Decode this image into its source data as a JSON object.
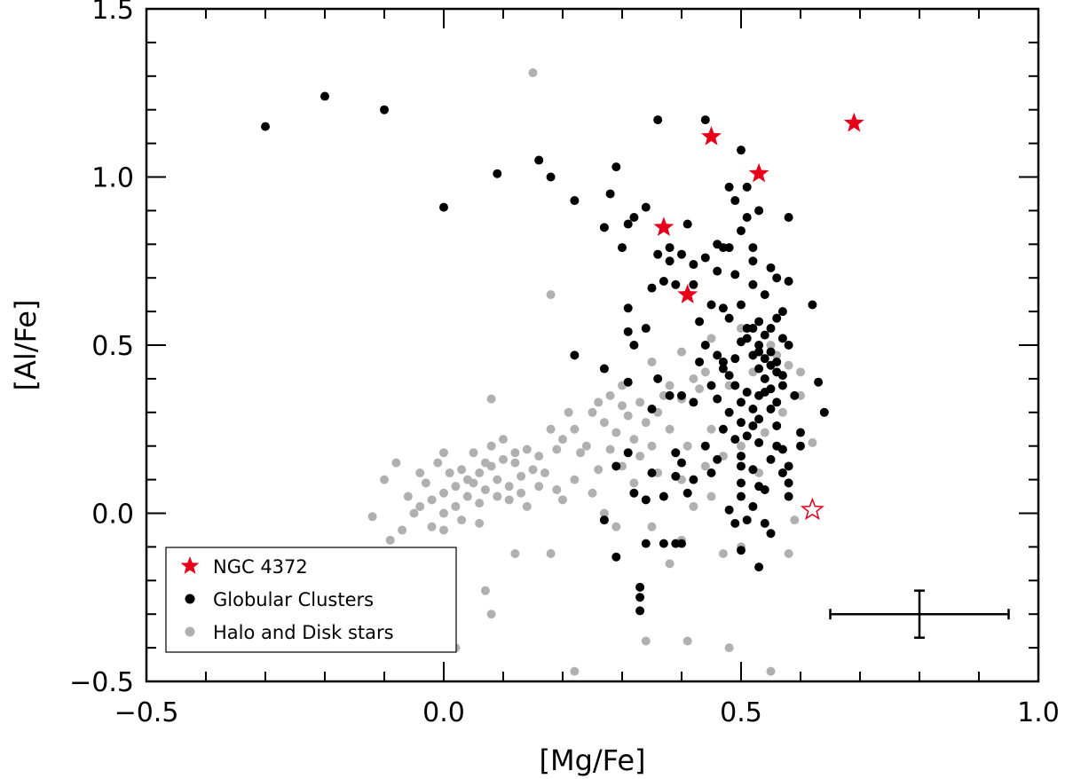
{
  "chart_data": {
    "type": "scatter",
    "title": "",
    "xlabel": "[Mg/Fe]",
    "ylabel": "[Al/Fe]",
    "xlim": [
      -0.5,
      1.0
    ],
    "ylim": [
      -0.5,
      1.5
    ],
    "x_ticks": [
      -0.5,
      0.0,
      0.5,
      1.0
    ],
    "x_tick_labels": [
      "−0.5",
      "0.0",
      "0.5",
      "1.0"
    ],
    "y_ticks": [
      -0.5,
      0.0,
      0.5,
      1.0,
      1.5
    ],
    "y_tick_labels": [
      "−0.5",
      "0.0",
      "0.5",
      "1.0",
      "1.5"
    ],
    "grid": false,
    "legend_position": "bottom-left",
    "series": [
      {
        "name": "Halo and Disk stars",
        "marker": "circle",
        "color": "#b0b0b0",
        "points": [
          [
            0.15,
            1.31
          ],
          [
            0.18,
            0.65
          ],
          [
            0.3,
            0.38
          ],
          [
            0.35,
            0.45
          ],
          [
            0.4,
            0.48
          ],
          [
            0.45,
            0.52
          ],
          [
            0.5,
            0.55
          ],
          [
            0.55,
            0.5
          ],
          [
            0.6,
            0.42
          ],
          [
            0.38,
            0.38
          ],
          [
            0.42,
            0.4
          ],
          [
            0.47,
            0.45
          ],
          [
            0.33,
            0.33
          ],
          [
            0.36,
            0.3
          ],
          [
            0.28,
            0.35
          ],
          [
            0.25,
            0.3
          ],
          [
            0.22,
            0.25
          ],
          [
            0.2,
            0.22
          ],
          [
            0.18,
            0.25
          ],
          [
            0.27,
            0.27
          ],
          [
            0.31,
            0.29
          ],
          [
            0.24,
            0.2
          ],
          [
            0.21,
            0.3
          ],
          [
            0.26,
            0.33
          ],
          [
            0.3,
            0.32
          ],
          [
            0.34,
            0.27
          ],
          [
            0.37,
            0.35
          ],
          [
            0.4,
            0.34
          ],
          [
            0.43,
            0.37
          ],
          [
            0.44,
            0.42
          ],
          [
            0.48,
            0.38
          ],
          [
            0.52,
            0.42
          ],
          [
            0.56,
            0.47
          ],
          [
            0.58,
            0.44
          ],
          [
            0.29,
            0.24
          ],
          [
            0.32,
            0.22
          ],
          [
            0.35,
            0.2
          ],
          [
            0.38,
            0.25
          ],
          [
            0.41,
            0.2
          ],
          [
            0.45,
            0.25
          ],
          [
            0.23,
            0.18
          ],
          [
            0.19,
            0.19
          ],
          [
            0.16,
            0.17
          ],
          [
            0.14,
            0.19
          ],
          [
            0.12,
            0.18
          ],
          [
            0.1,
            0.16
          ],
          [
            0.08,
            0.14
          ],
          [
            0.06,
            0.12
          ],
          [
            0.04,
            0.1
          ],
          [
            0.02,
            0.08
          ],
          [
            0.0,
            0.06
          ],
          [
            -0.02,
            0.04
          ],
          [
            -0.04,
            0.02
          ],
          [
            0.01,
            0.12
          ],
          [
            0.03,
            0.13
          ],
          [
            0.05,
            0.09
          ],
          [
            0.07,
            0.07
          ],
          [
            0.09,
            0.05
          ],
          [
            0.11,
            0.08
          ],
          [
            0.13,
            0.11
          ],
          [
            0.15,
            0.13
          ],
          [
            0.17,
            0.12
          ],
          [
            0.06,
            0.03
          ],
          [
            0.04,
            0.05
          ],
          [
            0.02,
            0.02
          ],
          [
            0.0,
            0.0
          ],
          [
            -0.03,
            0.09
          ],
          [
            -0.06,
            0.05
          ],
          [
            0.08,
            0.2
          ],
          [
            0.1,
            0.22
          ],
          [
            0.12,
            0.15
          ],
          [
            0.05,
            0.18
          ],
          [
            0.07,
            0.15
          ],
          [
            0.09,
            0.1
          ],
          [
            0.11,
            0.04
          ],
          [
            0.13,
            0.06
          ],
          [
            0.03,
            -0.02
          ],
          [
            0.06,
            -0.03
          ],
          [
            0.0,
            -0.05
          ],
          [
            -0.02,
            -0.04
          ],
          [
            -0.05,
            0.0
          ],
          [
            -0.08,
            0.15
          ],
          [
            -0.1,
            0.1
          ],
          [
            -0.12,
            -0.01
          ],
          [
            -0.09,
            -0.08
          ],
          [
            -0.07,
            -0.05
          ],
          [
            0.08,
            0.34
          ],
          [
            0.12,
            -0.12
          ],
          [
            0.19,
            0.07
          ],
          [
            0.22,
            0.1
          ],
          [
            0.26,
            0.13
          ],
          [
            0.3,
            0.14
          ],
          [
            0.28,
            0.19
          ],
          [
            0.33,
            0.17
          ],
          [
            0.36,
            0.12
          ],
          [
            0.4,
            0.1
          ],
          [
            0.44,
            0.14
          ],
          [
            0.47,
            0.17
          ],
          [
            0.5,
            0.2
          ],
          [
            0.54,
            0.24
          ],
          [
            0.57,
            0.3
          ],
          [
            0.6,
            0.35
          ],
          [
            0.62,
            0.21
          ],
          [
            0.35,
            -0.04
          ],
          [
            0.4,
            -0.08
          ],
          [
            0.29,
            -0.04
          ],
          [
            0.18,
            -0.12
          ],
          [
            0.07,
            -0.23
          ],
          [
            0.08,
            -0.3
          ],
          [
            0.02,
            -0.4
          ],
          [
            0.22,
            -0.47
          ],
          [
            0.34,
            -0.38
          ],
          [
            0.41,
            -0.38
          ],
          [
            0.38,
            -0.15
          ],
          [
            0.47,
            -0.12
          ],
          [
            0.5,
            -0.1
          ],
          [
            0.55,
            -0.06
          ],
          [
            0.58,
            -0.12
          ],
          [
            0.59,
            -0.02
          ],
          [
            0.48,
            -0.4
          ],
          [
            0.55,
            -0.47
          ],
          [
            0.42,
            0.02
          ],
          [
            0.45,
            0.05
          ],
          [
            0.53,
            0.12
          ],
          [
            0.25,
            0.06
          ],
          [
            0.27,
            0.0
          ],
          [
            0.32,
            0.09
          ],
          [
            0.14,
            0.02
          ],
          [
            0.16,
            0.08
          ],
          [
            0.2,
            0.04
          ],
          [
            -0.01,
            0.15
          ],
          [
            -0.04,
            0.12
          ],
          [
            0.0,
            0.18
          ]
        ]
      },
      {
        "name": "Globular Clusters",
        "marker": "circle",
        "color": "#000000",
        "points": [
          [
            -0.3,
            1.15
          ],
          [
            -0.2,
            1.24
          ],
          [
            -0.1,
            1.2
          ],
          [
            0.0,
            0.91
          ],
          [
            0.09,
            1.01
          ],
          [
            0.16,
            1.05
          ],
          [
            0.18,
            1.0
          ],
          [
            0.22,
            0.93
          ],
          [
            0.27,
            0.85
          ],
          [
            0.28,
            0.95
          ],
          [
            0.29,
            1.03
          ],
          [
            0.3,
            0.79
          ],
          [
            0.31,
            0.86
          ],
          [
            0.32,
            0.88
          ],
          [
            0.34,
            0.91
          ],
          [
            0.36,
            1.17
          ],
          [
            0.38,
            0.79
          ],
          [
            0.4,
            0.77
          ],
          [
            0.42,
            0.74
          ],
          [
            0.44,
            0.76
          ],
          [
            0.44,
            1.17
          ],
          [
            0.46,
            0.72
          ],
          [
            0.47,
            0.79
          ],
          [
            0.5,
            0.84
          ],
          [
            0.5,
            1.08
          ],
          [
            0.52,
            0.75
          ],
          [
            0.53,
            0.9
          ],
          [
            0.54,
            0.65
          ],
          [
            0.56,
            0.7
          ],
          [
            0.58,
            0.88
          ],
          [
            0.48,
            0.97
          ],
          [
            0.49,
            0.93
          ],
          [
            0.51,
            0.97
          ],
          [
            0.31,
            0.61
          ],
          [
            0.31,
            0.54
          ],
          [
            0.32,
            0.5
          ],
          [
            0.35,
            0.67
          ],
          [
            0.37,
            0.69
          ],
          [
            0.39,
            0.68
          ],
          [
            0.43,
            0.57
          ],
          [
            0.44,
            0.5
          ],
          [
            0.46,
            0.47
          ],
          [
            0.47,
            0.45
          ],
          [
            0.48,
            0.41
          ],
          [
            0.49,
            0.46
          ],
          [
            0.5,
            0.51
          ],
          [
            0.51,
            0.52
          ],
          [
            0.52,
            0.55
          ],
          [
            0.53,
            0.43
          ],
          [
            0.54,
            0.46
          ],
          [
            0.55,
            0.44
          ],
          [
            0.56,
            0.58
          ],
          [
            0.57,
            0.52
          ],
          [
            0.58,
            0.5
          ],
          [
            0.59,
            0.35
          ],
          [
            0.53,
            0.5
          ],
          [
            0.55,
            0.55
          ],
          [
            0.56,
            0.42
          ],
          [
            0.22,
            0.47
          ],
          [
            0.27,
            0.43
          ],
          [
            0.31,
            0.39
          ],
          [
            0.35,
            0.31
          ],
          [
            0.38,
            0.35
          ],
          [
            0.4,
            0.35
          ],
          [
            0.42,
            0.33
          ],
          [
            0.45,
            0.38
          ],
          [
            0.46,
            0.34
          ],
          [
            0.48,
            0.3
          ],
          [
            0.5,
            0.27
          ],
          [
            0.51,
            0.36
          ],
          [
            0.52,
            0.31
          ],
          [
            0.53,
            0.28
          ],
          [
            0.54,
            0.4
          ],
          [
            0.55,
            0.37
          ],
          [
            0.56,
            0.33
          ],
          [
            0.57,
            0.38
          ],
          [
            0.6,
            0.24
          ],
          [
            0.63,
            0.39
          ],
          [
            0.64,
            0.3
          ],
          [
            0.62,
            0.62
          ],
          [
            0.49,
            0.22
          ],
          [
            0.5,
            0.17
          ],
          [
            0.51,
            0.23
          ],
          [
            0.52,
            0.13
          ],
          [
            0.53,
            0.21
          ],
          [
            0.54,
            0.07
          ],
          [
            0.55,
            0.16
          ],
          [
            0.56,
            0.2
          ],
          [
            0.57,
            0.12
          ],
          [
            0.58,
            0.09
          ],
          [
            0.58,
            0.05
          ],
          [
            0.39,
            0.11
          ],
          [
            0.4,
            0.15
          ],
          [
            0.41,
            0.06
          ],
          [
            0.42,
            0.1
          ],
          [
            0.44,
            0.2
          ],
          [
            0.45,
            0.12
          ],
          [
            0.46,
            0.16
          ],
          [
            0.47,
            0.25
          ],
          [
            0.5,
            0.09
          ],
          [
            0.51,
            -0.02
          ],
          [
            0.52,
            0.02
          ],
          [
            0.53,
            0.08
          ],
          [
            0.54,
            -0.03
          ],
          [
            0.27,
            -0.02
          ],
          [
            0.29,
            0.14
          ],
          [
            0.31,
            0.18
          ],
          [
            0.32,
            0.06
          ],
          [
            0.34,
            0.04
          ],
          [
            0.35,
            0.12
          ],
          [
            0.37,
            0.05
          ],
          [
            0.39,
            0.18
          ],
          [
            0.34,
            -0.09
          ],
          [
            0.37,
            -0.09
          ],
          [
            0.39,
            -0.09
          ],
          [
            0.4,
            -0.09
          ],
          [
            0.29,
            -0.13
          ],
          [
            0.33,
            -0.22
          ],
          [
            0.33,
            -0.25
          ],
          [
            0.33,
            -0.29
          ],
          [
            0.5,
            -0.11
          ],
          [
            0.53,
            -0.16
          ],
          [
            0.55,
            -0.06
          ],
          [
            0.38,
            0.75
          ],
          [
            0.36,
            0.77
          ],
          [
            0.42,
            0.68
          ],
          [
            0.45,
            0.62
          ],
          [
            0.47,
            0.61
          ],
          [
            0.48,
            0.58
          ],
          [
            0.49,
            0.71
          ],
          [
            0.5,
            0.62
          ],
          [
            0.51,
            0.55
          ],
          [
            0.52,
            0.68
          ],
          [
            0.55,
            0.73
          ],
          [
            0.57,
            0.6
          ],
          [
            0.58,
            0.69
          ],
          [
            0.48,
            0.79
          ],
          [
            0.46,
            0.8
          ],
          [
            0.41,
            0.86
          ],
          [
            0.51,
            0.88
          ],
          [
            0.52,
            0.79
          ],
          [
            0.53,
            0.57
          ],
          [
            0.54,
            0.53
          ],
          [
            0.55,
            0.48
          ],
          [
            0.56,
            0.45
          ],
          [
            0.57,
            0.41
          ],
          [
            0.34,
            0.55
          ],
          [
            0.36,
            0.4
          ],
          [
            0.43,
            0.45
          ],
          [
            0.47,
            0.43
          ],
          [
            0.49,
            0.38
          ],
          [
            0.5,
            0.33
          ],
          [
            0.52,
            0.47
          ],
          [
            0.54,
            0.36
          ],
          [
            0.55,
            0.31
          ],
          [
            0.56,
            0.26
          ],
          [
            0.57,
            0.19
          ],
          [
            0.58,
            0.14
          ],
          [
            0.6,
            0.2
          ],
          [
            0.48,
            0.01
          ],
          [
            0.49,
            -0.03
          ],
          [
            0.5,
            0.05
          ],
          [
            0.5,
            0.14
          ],
          [
            0.52,
            0.26
          ],
          [
            0.53,
            0.35
          ],
          [
            0.53,
            0.48
          ]
        ]
      },
      {
        "name": "NGC 4372",
        "marker": "star",
        "color": "#e8001a",
        "points": [
          [
            0.37,
            0.85
          ],
          [
            0.41,
            0.65
          ],
          [
            0.45,
            1.12
          ],
          [
            0.53,
            1.01
          ],
          [
            0.69,
            1.16
          ]
        ]
      },
      {
        "name": "",
        "marker": "star-open",
        "color": "#e8001a",
        "points": [
          [
            0.62,
            0.01
          ]
        ]
      }
    ],
    "error_bar": {
      "x": 0.8,
      "y": -0.3,
      "xerr": 0.15,
      "yerr": 0.07
    },
    "legend": [
      {
        "label": "NGC 4372",
        "marker": "star",
        "color": "#e8001a"
      },
      {
        "label": "Globular Clusters",
        "marker": "circle",
        "color": "#000000"
      },
      {
        "label": "Halo and Disk stars",
        "marker": "circle",
        "color": "#b0b0b0"
      }
    ]
  }
}
